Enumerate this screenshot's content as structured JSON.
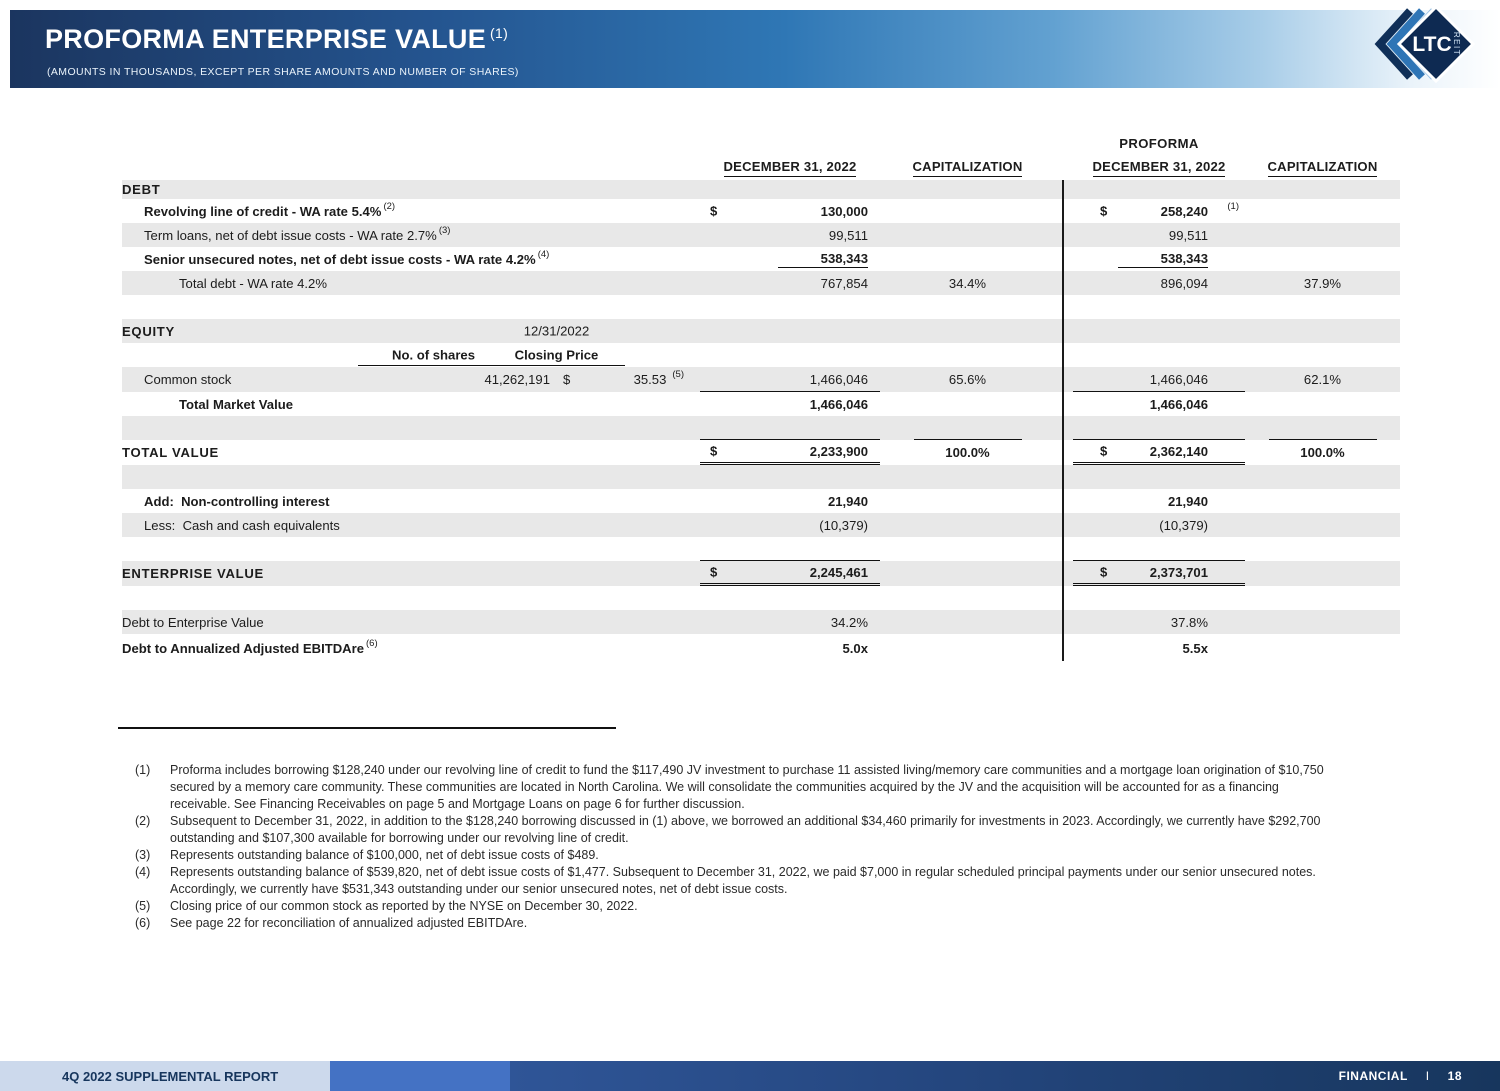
{
  "header": {
    "title": "PROFORMA ENTERPRISE VALUE",
    "title_sup": "(1)",
    "subtitle": "(AMOUNTS IN THOUSANDS, EXCEPT PER SHARE AMOUNTS AND NUMBER OF SHARES)"
  },
  "logo": {
    "text": "LTC",
    "reit": "REIT"
  },
  "table": {
    "proforma_label": "PROFORMA",
    "col_headers": [
      "DECEMBER 31, 2022",
      "CAPITALIZATION",
      "DECEMBER 31, 2022",
      "CAPITALIZATION"
    ],
    "rows": [
      {
        "type": "section",
        "gray": true,
        "label": "DEBT",
        "indent": 0
      },
      {
        "type": "item",
        "bold": true,
        "indent": 1,
        "label": "Revolving line of credit - WA rate 5.4%",
        "sup": "(2)",
        "v1d": "$",
        "v1": "130,000",
        "v2d": "$",
        "v2": "258,240",
        "v2sup": "(1)"
      },
      {
        "type": "item",
        "gray": true,
        "indent": 1,
        "label": "Term loans, net of debt issue costs - WA rate 2.7%",
        "sup": "(3)",
        "v1": "99,511",
        "v2": "99,511"
      },
      {
        "type": "item",
        "bold": true,
        "indent": 1,
        "label": "Senior unsecured notes, net of debt issue costs - WA rate 4.2%",
        "sup": "(4)",
        "v1": "538,343",
        "v2": "538,343",
        "nu1": true,
        "nu2": true
      },
      {
        "type": "item",
        "gray": true,
        "indent": 2,
        "label": "Total debt - WA rate 4.2%",
        "v1": "767,854",
        "cap1": "34.4%",
        "v2": "896,094",
        "cap2": "37.9%"
      },
      {
        "type": "spacer"
      },
      {
        "type": "equity-head",
        "gray": true,
        "label": "EQUITY",
        "date": "12/31/2022"
      },
      {
        "type": "equity-subhead",
        "shares_header": "No. of shares",
        "price_header": "Closing Price"
      },
      {
        "type": "stock",
        "gray": true,
        "indent": 1,
        "label": "Common stock",
        "shares": "41,262,191",
        "price_dollar": "$",
        "price": "35.53",
        "price_sup": "(5)",
        "v1": "1,466,046",
        "cap1": "65.6%",
        "v2": "1,466,046",
        "cap2": "62.1%",
        "uf1": true,
        "uf2": true
      },
      {
        "type": "item",
        "bold": true,
        "indent": 2,
        "label": "Total Market Value",
        "v1": "1,466,046",
        "v2": "1,466,046"
      },
      {
        "type": "line",
        "gray": true,
        "l1": true,
        "lc1": true,
        "l2": true,
        "lc2": true
      },
      {
        "type": "total",
        "indent": 0,
        "label": "TOTAL VALUE",
        "v1d": "$",
        "v1": "2,233,900",
        "cap1": "100.0%",
        "v2d": "$",
        "v2": "2,362,140",
        "cap2": "100.0%",
        "du1": true,
        "du2": true
      },
      {
        "type": "spacer",
        "gray": true
      },
      {
        "type": "item",
        "bold": true,
        "indent": 1,
        "label": "Add:  Non-controlling interest",
        "v1": "21,940",
        "v2": "21,940"
      },
      {
        "type": "item",
        "gray": true,
        "indent": 1,
        "label": "Less:  Cash and cash equivalents",
        "v1": "(10,379)",
        "v2": "(10,379)"
      },
      {
        "type": "line",
        "l1": true,
        "l2": true
      },
      {
        "type": "total",
        "gray": true,
        "indent": 0,
        "label": "ENTERPRISE VALUE",
        "v1d": "$",
        "v1": "2,245,461",
        "v2d": "$",
        "v2": "2,373,701",
        "du1": true,
        "du2": true
      },
      {
        "type": "spacer"
      },
      {
        "type": "item",
        "gray": true,
        "indent": 0,
        "label": "Debt to Enterprise Value",
        "v1": "34.2%",
        "v2": "37.8%"
      },
      {
        "type": "item",
        "bold": true,
        "indent": 0,
        "label": "Debt to Annualized Adjusted EBITDAre",
        "sup": "(6)",
        "v1": "5.0x",
        "v2": "5.5x",
        "h": 28
      }
    ]
  },
  "footnotes": [
    {
      "num": "(1)",
      "text": "Proforma includes borrowing $128,240 under our revolving line of credit to fund the $117,490 JV investment to purchase 11 assisted living/memory care communities and a mortgage loan origination of $10,750 secured by a memory care community. These communities are located in North Carolina. We will consolidate the communities acquired by the JV and the acquisition will be accounted for as a financing receivable. See Financing Receivables on page 5 and Mortgage Loans on page 6 for further discussion."
    },
    {
      "num": "(2)",
      "text": "Subsequent to December 31, 2022, in addition to the $128,240 borrowing discussed in (1) above, we borrowed an additional $34,460 primarily for investments in 2023. Accordingly, we currently have $292,700 outstanding and $107,300 available for borrowing under our revolving line of credit."
    },
    {
      "num": "(3)",
      "text": "Represents outstanding balance of $100,000, net of debt issue costs of $489."
    },
    {
      "num": "(4)",
      "text": "Represents outstanding balance of $539,820, net of debt issue costs of $1,477. Subsequent to December 31, 2022, we paid $7,000 in regular scheduled principal payments under our senior unsecured notes. Accordingly, we currently have $531,343 outstanding under our senior unsecured notes, net of debt issue costs."
    },
    {
      "num": "(5)",
      "text": "Closing price of our common stock as reported by the NYSE on December 30, 2022."
    },
    {
      "num": "(6)",
      "text": "See page 22 for reconciliation of annualized adjusted EBITDAre."
    }
  ],
  "footer": {
    "left": "4Q 2022 SUPPLEMENTAL REPORT",
    "section": "FINANCIAL",
    "sep": "I",
    "page": "18"
  }
}
